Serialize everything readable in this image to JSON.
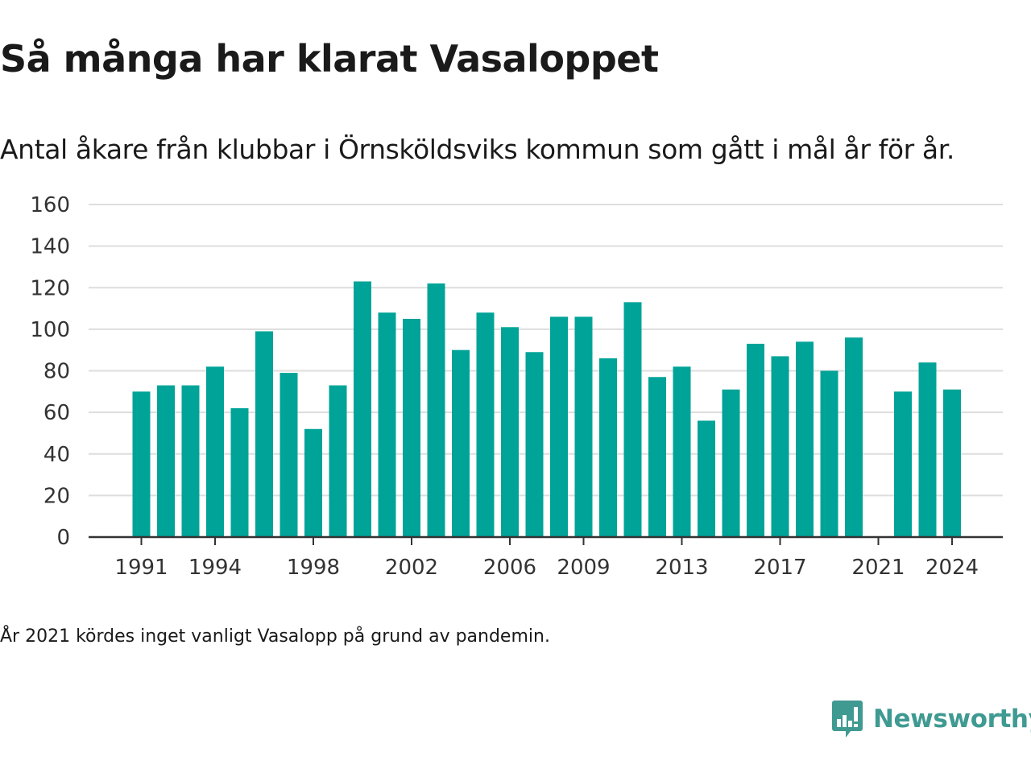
{
  "title": "Så många har klarat Vasaloppet",
  "subtitle": "Antal åkare från klubbar i Örnsköldsviks kommun som gått i mål år för år.",
  "footnote": "År 2021 kördes inget vanligt Vasalopp på grund av pandemin.",
  "brand": {
    "name": "Newsworthy",
    "logo_icon": "bar-chart-speech-bubble-icon",
    "color": "#3f9a92"
  },
  "chart_data": {
    "type": "bar",
    "categories": [
      1991,
      1992,
      1993,
      1994,
      1995,
      1996,
      1997,
      1998,
      1999,
      2000,
      2001,
      2002,
      2003,
      2004,
      2005,
      2006,
      2007,
      2008,
      2009,
      2010,
      2011,
      2012,
      2013,
      2014,
      2015,
      2016,
      2017,
      2018,
      2019,
      2020,
      2021,
      2022,
      2023,
      2024
    ],
    "values": [
      70,
      73,
      73,
      82,
      62,
      99,
      79,
      52,
      73,
      123,
      108,
      105,
      122,
      90,
      108,
      101,
      89,
      106,
      106,
      86,
      113,
      77,
      82,
      56,
      71,
      93,
      87,
      94,
      80,
      96,
      null,
      70,
      84,
      71
    ],
    "x_tick_labels": [
      "1991",
      "1994",
      "1998",
      "2002",
      "2006",
      "2009",
      "2013",
      "2017",
      "2021",
      "2024"
    ],
    "y_ticks": [
      0,
      20,
      40,
      60,
      80,
      100,
      120,
      140,
      160
    ],
    "ylim": [
      0,
      160
    ],
    "grid": true,
    "bar_color": "#00a398",
    "title": "Så många har klarat Vasaloppet",
    "xlabel": "",
    "ylabel": ""
  }
}
